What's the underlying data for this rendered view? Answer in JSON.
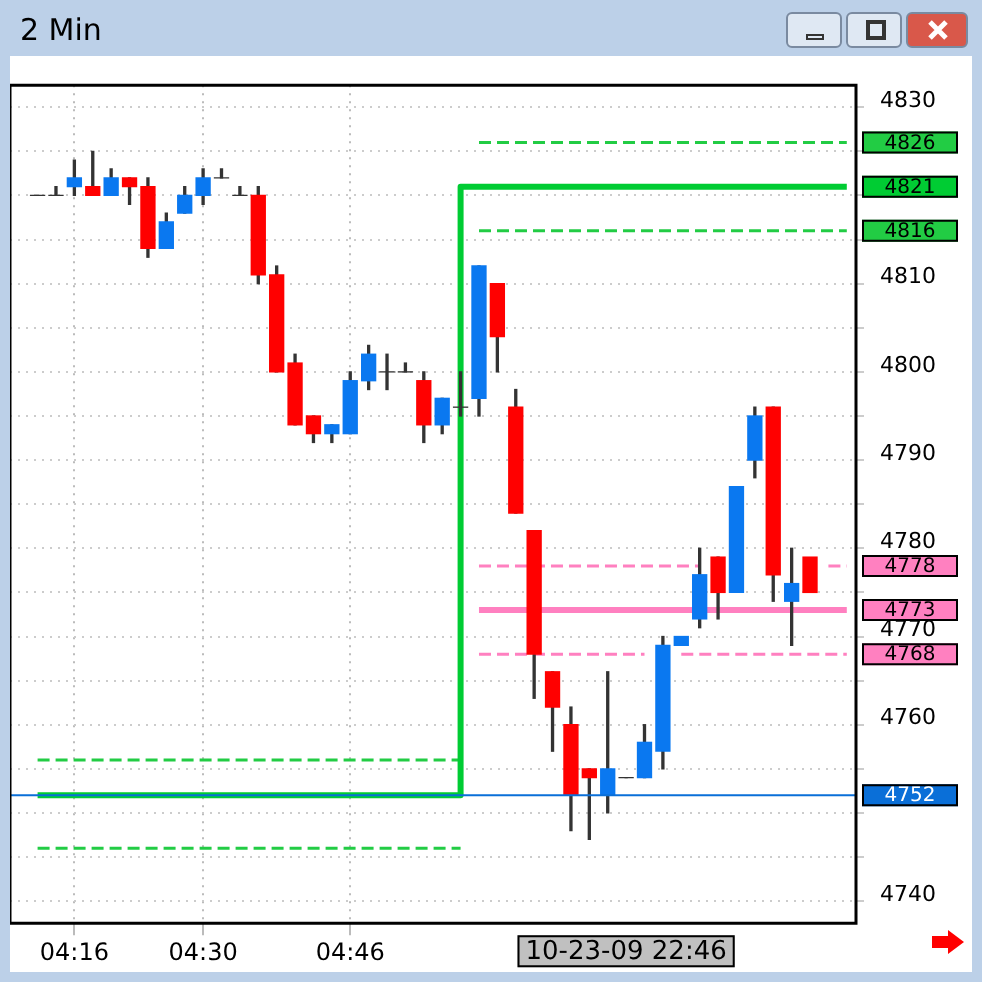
{
  "chart_data": {
    "type": "candlestick",
    "title": "2 Min",
    "categories": [
      null,
      null,
      null,
      "04:16",
      null,
      null,
      null,
      null,
      null,
      null,
      "04:30",
      null,
      null,
      null,
      null,
      null,
      null,
      null,
      "04:46",
      null,
      null,
      null,
      null,
      null,
      null,
      null,
      null,
      null,
      null,
      null,
      null,
      null,
      null,
      null,
      null,
      null,
      null,
      null,
      null,
      null,
      null,
      null,
      null,
      null,
      null,
      null
    ],
    "ohlc": [
      null,
      [
        4820,
        4820,
        4820,
        4820
      ],
      [
        4820,
        4821,
        4820,
        4820
      ],
      [
        4821,
        4824,
        4820,
        4822
      ],
      [
        4821,
        4825,
        4820,
        4820
      ],
      [
        4820,
        4823,
        4820,
        4822
      ],
      [
        4822,
        4822,
        4819,
        4821
      ],
      [
        4821,
        4822,
        4813,
        4814
      ],
      [
        4814,
        4818,
        4814,
        4817
      ],
      [
        4818,
        4821,
        4818,
        4820
      ],
      [
        4820,
        4823,
        4819,
        4822
      ],
      [
        4822,
        4823,
        4822,
        4822
      ],
      [
        4820,
        4821,
        4820,
        4820
      ],
      [
        4820,
        4821,
        4810,
        4811
      ],
      [
        4811,
        4812,
        4800,
        4800
      ],
      [
        4801,
        4802,
        4794,
        4794
      ],
      [
        4795,
        4795,
        4792,
        4793
      ],
      [
        4793,
        4794,
        4792,
        4794
      ],
      [
        4793,
        4800,
        4793,
        4799
      ],
      [
        4799,
        4803,
        4798,
        4802
      ],
      [
        4800,
        4802,
        4798,
        4800
      ],
      [
        4800,
        4801,
        4800,
        4800
      ],
      [
        4799,
        4800,
        4792,
        4794
      ],
      [
        4794,
        4797,
        4793,
        4797
      ],
      [
        4796,
        4800,
        4795,
        4796
      ],
      [
        4797,
        4812,
        4795,
        4812
      ],
      [
        4810,
        4810,
        4800,
        4804
      ],
      [
        4796,
        4798,
        4784,
        4784
      ],
      [
        4782,
        4782,
        4763,
        4768
      ],
      [
        4766,
        4766,
        4757,
        4762
      ],
      [
        4760,
        4762,
        4748,
        4752
      ],
      [
        4755,
        4755,
        4747,
        4754
      ],
      [
        4752,
        4766,
        4750,
        4755
      ],
      [
        4754,
        4754,
        4754,
        4754
      ],
      [
        4754,
        4760,
        4754,
        4758
      ],
      [
        4757,
        4770,
        4755,
        4769
      ],
      [
        4769,
        4770,
        4769,
        4770
      ],
      [
        4772,
        4780,
        4771,
        4777
      ],
      [
        4779,
        4779,
        4772,
        4775
      ],
      [
        4775,
        4787,
        4775,
        4787
      ],
      [
        4790,
        4796,
        4788,
        4795
      ],
      [
        4796,
        4796,
        4774,
        4777
      ],
      [
        4774,
        4780,
        4769,
        4776
      ],
      [
        4779,
        4779,
        4775,
        4775
      ],
      null,
      null
    ],
    "colors": [
      null,
      "#333333",
      "#333333",
      "#0a78f0",
      "#ff0000",
      "#0a78f0",
      "#ff0000",
      "#ff0000",
      "#0a78f0",
      "#0a78f0",
      "#0a78f0",
      "#333333",
      "#333333",
      "#ff0000",
      "#ff0000",
      "#ff0000",
      "#ff0000",
      "#0a78f0",
      "#0a78f0",
      "#0a78f0",
      "#333333",
      "#333333",
      "#ff0000",
      "#0a78f0",
      "#333333",
      "#0a78f0",
      "#ff0000",
      "#ff0000",
      "#ff0000",
      "#ff0000",
      "#ff0000",
      "#ff0000",
      "#0a78f0",
      "#333333",
      "#0a78f0",
      "#0a78f0",
      "#0a78f0",
      "#0a78f0",
      "#ff0000",
      "#0a78f0",
      "#0a78f0",
      "#ff0000",
      "#0a78f0",
      "#ff0000",
      null,
      null
    ],
    "series": [
      {
        "type": "step",
        "color": "#00cc33",
        "line_style": "solid",
        "values": [
          null,
          4752,
          4752,
          4752,
          4752,
          4752,
          4752,
          4752,
          4752,
          4752,
          4752,
          4752,
          4752,
          4752,
          4752,
          4752,
          4752,
          4752,
          4752,
          4752,
          4752,
          4752,
          4752,
          4752,
          4752,
          4821,
          4821,
          4821,
          4821,
          4821,
          4821,
          4821,
          4821,
          4821,
          4821,
          4821,
          4821,
          4821,
          4821,
          4821,
          4821,
          4821,
          4821,
          4821,
          4821,
          4821
        ],
        "value_labels": [
          null,
          null,
          null,
          null,
          null,
          null,
          null,
          null,
          null,
          null,
          null,
          null,
          null,
          null,
          null,
          null,
          null,
          null,
          null,
          null,
          null,
          null,
          null,
          null,
          null,
          null,
          null,
          null,
          null,
          null,
          null,
          null,
          null,
          null,
          null,
          null,
          null,
          null,
          null,
          null,
          null,
          null,
          null,
          null,
          null,
          "4821"
        ]
      },
      {
        "type": "line",
        "color": "#22cc44",
        "line_style": "dashed",
        "values": [
          null,
          4756,
          4756,
          4756,
          4756,
          4756,
          4756,
          4756,
          4756,
          4756,
          4756,
          4756,
          4756,
          4756,
          4756,
          4756,
          4756,
          4756,
          4756,
          4756,
          4756,
          4756,
          4756,
          4756,
          4756,
          null,
          null,
          null,
          null,
          null,
          null,
          null,
          null,
          null,
          null,
          null,
          null,
          null,
          null,
          null,
          null,
          null,
          null,
          null,
          null,
          null
        ]
      },
      {
        "type": "line",
        "color": "#22cc44",
        "line_style": "dashed",
        "values": [
          null,
          4746,
          4746,
          4746,
          4746,
          4746,
          4746,
          4746,
          4746,
          4746,
          4746,
          4746,
          4746,
          4746,
          4746,
          4746,
          4746,
          4746,
          4746,
          4746,
          4746,
          4746,
          4746,
          4746,
          4746,
          null,
          null,
          null,
          null,
          null,
          null,
          null,
          null,
          null,
          null,
          null,
          null,
          null,
          null,
          null,
          null,
          null,
          null,
          null,
          null,
          null
        ]
      },
      {
        "type": "line",
        "color": "#22cc44",
        "line_style": "dashed",
        "values": [
          null,
          null,
          null,
          null,
          null,
          null,
          null,
          null,
          null,
          null,
          null,
          null,
          null,
          null,
          null,
          null,
          null,
          null,
          null,
          null,
          null,
          null,
          null,
          null,
          null,
          4826,
          4826,
          4826,
          4826,
          4826,
          4826,
          4826,
          4826,
          4826,
          4826,
          4826,
          4826,
          4826,
          4826,
          4826,
          4826,
          4826,
          4826,
          4826,
          4826,
          4826
        ],
        "value_labels": [
          null,
          null,
          null,
          null,
          null,
          null,
          null,
          null,
          null,
          null,
          null,
          null,
          null,
          null,
          null,
          null,
          null,
          null,
          null,
          null,
          null,
          null,
          null,
          null,
          null,
          null,
          null,
          null,
          null,
          null,
          null,
          null,
          null,
          null,
          null,
          null,
          null,
          null,
          null,
          null,
          null,
          null,
          null,
          null,
          null,
          "4826"
        ]
      },
      {
        "type": "line",
        "color": "#22cc44",
        "line_style": "dashed",
        "values": [
          null,
          null,
          null,
          null,
          null,
          null,
          null,
          null,
          null,
          null,
          null,
          null,
          null,
          null,
          null,
          null,
          null,
          null,
          null,
          null,
          null,
          null,
          null,
          null,
          null,
          4816,
          4816,
          4816,
          4816,
          4816,
          4816,
          4816,
          4816,
          4816,
          4816,
          4816,
          4816,
          4816,
          4816,
          4816,
          4816,
          4816,
          4816,
          4816,
          4816,
          4816
        ],
        "value_labels": [
          null,
          null,
          null,
          null,
          null,
          null,
          null,
          null,
          null,
          null,
          null,
          null,
          null,
          null,
          null,
          null,
          null,
          null,
          null,
          null,
          null,
          null,
          null,
          null,
          null,
          null,
          null,
          null,
          null,
          null,
          null,
          null,
          null,
          null,
          null,
          null,
          null,
          null,
          null,
          null,
          null,
          null,
          null,
          null,
          null,
          "4816"
        ]
      },
      {
        "type": "step",
        "color": "#ff80c0",
        "line_style": "solid",
        "values": [
          null,
          null,
          null,
          null,
          null,
          null,
          null,
          null,
          null,
          null,
          null,
          null,
          null,
          null,
          null,
          null,
          null,
          null,
          null,
          null,
          null,
          null,
          null,
          null,
          null,
          4773,
          4773,
          4773,
          4773,
          4773,
          4773,
          4773,
          4773,
          4773,
          4773,
          4773,
          4773,
          4773,
          4773,
          4773,
          4773,
          4773,
          4773,
          4773,
          4773,
          4773
        ],
        "value_labels": [
          null,
          null,
          null,
          null,
          null,
          null,
          null,
          null,
          null,
          null,
          null,
          null,
          null,
          null,
          null,
          null,
          null,
          null,
          null,
          null,
          null,
          null,
          null,
          null,
          null,
          null,
          null,
          null,
          null,
          null,
          null,
          null,
          null,
          null,
          null,
          null,
          null,
          null,
          null,
          null,
          null,
          null,
          null,
          null,
          null,
          "4773"
        ]
      },
      {
        "type": "line",
        "color": "#ff80c0",
        "line_style": "dashed",
        "values": [
          null,
          null,
          null,
          null,
          null,
          null,
          null,
          null,
          null,
          null,
          null,
          null,
          null,
          null,
          null,
          null,
          null,
          null,
          null,
          null,
          null,
          null,
          null,
          null,
          null,
          4778,
          4778,
          4778,
          4778,
          4778,
          4778,
          4778,
          4778,
          4778,
          4778,
          4778,
          4778,
          4778,
          null,
          null,
          null,
          null,
          null,
          null,
          4778,
          4778
        ],
        "value_labels": [
          null,
          null,
          null,
          null,
          null,
          null,
          null,
          null,
          null,
          null,
          null,
          null,
          null,
          null,
          null,
          null,
          null,
          null,
          null,
          null,
          null,
          null,
          null,
          null,
          null,
          null,
          null,
          null,
          null,
          null,
          null,
          null,
          null,
          null,
          null,
          null,
          null,
          null,
          null,
          null,
          null,
          null,
          null,
          null,
          null,
          "4778"
        ]
      },
      {
        "type": "line",
        "color": "#ff80c0",
        "line_style": "dashed",
        "values": [
          null,
          null,
          null,
          null,
          null,
          null,
          null,
          null,
          null,
          null,
          null,
          null,
          null,
          null,
          null,
          null,
          null,
          null,
          null,
          null,
          null,
          null,
          null,
          null,
          null,
          4768,
          4768,
          4768,
          4768,
          4768,
          4768,
          4768,
          4768,
          4768,
          4768,
          null,
          4768,
          4768,
          4768,
          4768,
          4768,
          4768,
          4768,
          4768,
          4768,
          4768
        ],
        "value_labels": [
          null,
          null,
          null,
          null,
          null,
          null,
          null,
          null,
          null,
          null,
          null,
          null,
          null,
          null,
          null,
          null,
          null,
          null,
          null,
          null,
          null,
          null,
          null,
          null,
          null,
          null,
          null,
          null,
          null,
          null,
          null,
          null,
          null,
          null,
          null,
          null,
          null,
          null,
          null,
          null,
          null,
          null,
          null,
          null,
          null,
          "4768"
        ]
      }
    ],
    "ref_lines": [
      {
        "axis": "y",
        "value": 4752,
        "label": "4752",
        "color": "#0a6fd8"
      }
    ],
    "ylim": [
      4737.5,
      4832.5
    ],
    "yticks": [
      4740,
      {
        "value": 4745,
        "label": null
      },
      {
        "value": 4750,
        "label": null
      },
      {
        "value": 4755,
        "label": null
      },
      4760,
      {
        "value": 4765,
        "label": null
      },
      4770,
      {
        "value": 4775,
        "label": null
      },
      4780,
      {
        "value": 4785,
        "label": null
      },
      4790,
      {
        "value": 4795,
        "label": null
      },
      4800,
      {
        "value": 4805,
        "label": null
      },
      4810,
      {
        "value": 4815,
        "label": null
      },
      {
        "value": 4820,
        "label": null
      },
      {
        "value": 4825,
        "label": null
      },
      4830
    ],
    "annotations": [
      "10-23-09 22:46"
    ],
    "grid": true,
    "legend": false,
    "marker": "none"
  }
}
